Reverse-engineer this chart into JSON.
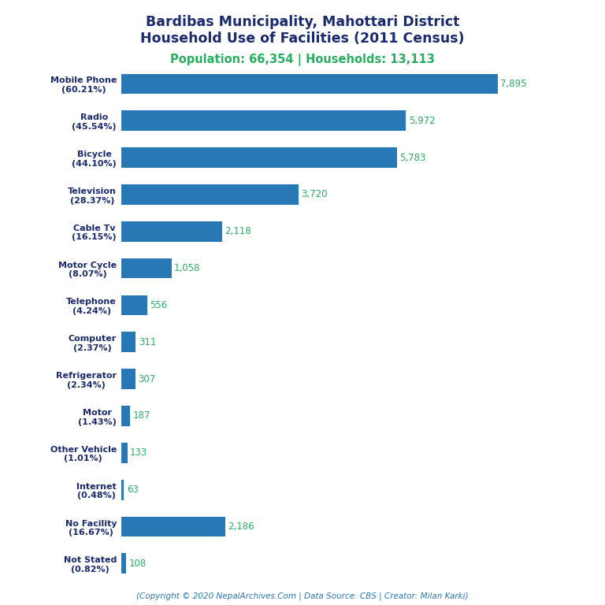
{
  "title_line1": "Bardibas Municipality, Mahottari District",
  "title_line2": "Household Use of Facilities (2011 Census)",
  "subtitle": "Population: 66,354 | Households: 13,113",
  "categories": [
    "Not Stated\n(0.82%)",
    "No Facility\n(16.67%)",
    "Internet\n(0.48%)",
    "Other Vehicle\n(1.01%)",
    "Motor\n(1.43%)",
    "Refrigerator\n(2.34%)",
    "Computer\n(2.37%)",
    "Telephone\n(4.24%)",
    "Motor Cycle\n(8.07%)",
    "Cable Tv\n(16.15%)",
    "Television\n(28.37%)",
    "Bicycle\n(44.10%)",
    "Radio\n(45.54%)",
    "Mobile Phone\n(60.21%)"
  ],
  "values": [
    108,
    2186,
    63,
    133,
    187,
    307,
    311,
    556,
    1058,
    2118,
    3720,
    5783,
    5972,
    7895
  ],
  "bar_color": "#2878b5",
  "value_color": "#27ae60",
  "title_color": "#1a2a6c",
  "subtitle_color": "#27ae60",
  "footer_text": "(Copyright © 2020 NepalArchives.Com | Data Source: CBS | Creator: Milan Karki)",
  "footer_color": "#2878b5",
  "background_color": "#ffffff",
  "xlim": [
    0,
    9000
  ]
}
